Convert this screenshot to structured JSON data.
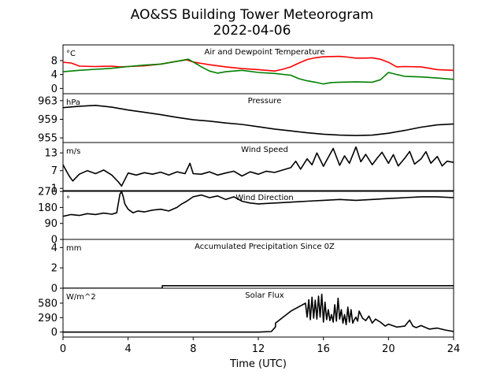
{
  "chart_data": {
    "type": "line",
    "title": "AO&SS Building Tower Meteorogram",
    "subtitle": "2022-04-06",
    "xlabel": "Time (UTC)",
    "xlim": [
      0,
      24
    ],
    "xticks": [
      0,
      4,
      8,
      12,
      16,
      20,
      24
    ],
    "grid": false,
    "panels": [
      {
        "title": "Air and Dewpoint Temperature",
        "unit": "°C",
        "ylim": [
          -1.5,
          12.5
        ],
        "yticks": [
          0,
          4,
          8
        ],
        "series": [
          {
            "color": "#ff0000",
            "x": [
              0,
              0.5,
              0.8,
              1,
              2,
              3,
              3.5,
              4,
              5,
              6,
              7,
              7.6,
              8,
              8.5,
              9,
              10,
              11,
              12,
              13,
              13.5,
              14,
              14.5,
              15,
              15.5,
              16,
              17,
              17.5,
              18,
              18.5,
              19,
              19.5,
              20,
              20.5,
              21,
              22,
              23,
              24
            ],
            "y": [
              7.5,
              7.3,
              6.8,
              6.4,
              6.3,
              6.4,
              6.2,
              6.3,
              6.5,
              7.0,
              7.8,
              8.2,
              7.6,
              7.2,
              6.8,
              6.2,
              5.7,
              5.4,
              5.0,
              5.5,
              6.2,
              7.3,
              8.3,
              8.8,
              9.1,
              9.2,
              9.0,
              8.7,
              8.7,
              8.8,
              8.4,
              7.5,
              6.2,
              6.3,
              6.2,
              5.4,
              5.2
            ]
          },
          {
            "color": "#008000",
            "x": [
              0,
              1,
              2,
              3,
              4,
              5,
              6,
              7,
              7.7,
              8,
              8.5,
              9,
              9.5,
              10,
              11,
              12,
              13,
              14,
              14.5,
              15,
              15.5,
              16,
              16.5,
              17,
              18,
              19,
              19.5,
              20,
              20.5,
              21,
              22,
              23,
              24
            ],
            "y": [
              4.8,
              5.2,
              5.5,
              5.8,
              6.3,
              6.7,
              7.0,
              7.8,
              8.4,
              7.6,
              6.2,
              5.0,
              4.4,
              4.8,
              5.2,
              4.6,
              4.3,
              3.8,
              2.8,
              2.2,
              1.8,
              1.3,
              1.7,
              1.8,
              1.9,
              1.8,
              2.5,
              4.6,
              4.0,
              3.5,
              3.3,
              3.0,
              2.6
            ]
          }
        ]
      },
      {
        "title": "Pressure",
        "unit": "hPa",
        "ylim": [
          954,
          964.5
        ],
        "yticks": [
          955,
          959,
          963
        ],
        "series": [
          {
            "color": "#000000",
            "x": [
              0,
              1,
              2,
              3,
              4,
              5,
              6,
              7,
              8,
              9,
              10,
              11,
              12,
              13,
              14,
              15,
              16,
              17,
              18,
              19,
              20,
              21,
              22,
              23,
              24
            ],
            "y": [
              961.5,
              961.8,
              962.0,
              961.6,
              961.0,
              960.5,
              960.0,
              959.4,
              958.9,
              958.6,
              958.2,
              957.9,
              957.4,
              956.9,
              956.5,
              956.1,
              955.8,
              955.6,
              955.5,
              955.6,
              956.0,
              956.6,
              957.3,
              957.8,
              958.0
            ]
          }
        ]
      },
      {
        "title": "Wind Speed",
        "unit": "m/s",
        "ylim": [
          0,
          16.5
        ],
        "yticks": [
          1,
          7,
          13
        ],
        "series": [
          {
            "color": "#000000",
            "x": [
              0,
              0.2,
              0.4,
              0.6,
              1,
              1.5,
              2,
              2.5,
              3,
              3.4,
              3.6,
              4,
              4.5,
              5,
              5.5,
              6,
              6.5,
              7,
              7.5,
              7.8,
              8,
              8.5,
              9,
              9.5,
              10,
              10.5,
              11,
              11.5,
              12,
              12.5,
              13,
              13.5,
              14,
              14.3,
              14.6,
              15,
              15.3,
              15.6,
              16,
              16.3,
              16.6,
              17,
              17.3,
              17.6,
              18,
              18.3,
              18.6,
              19,
              19.3,
              19.6,
              20,
              20.3,
              20.6,
              21,
              21.3,
              21.6,
              22,
              22.3,
              22.6,
              23,
              23.3,
              23.6,
              24
            ],
            "y": [
              9,
              7,
              5,
              3.5,
              5.8,
              7,
              6,
              7.2,
              5.5,
              3.2,
              1.8,
              6.2,
              5.5,
              6.3,
              5.8,
              6.5,
              5.5,
              6.6,
              6.0,
              9.5,
              6.0,
              5.8,
              6.6,
              5.5,
              6.2,
              6.8,
              5.2,
              6.6,
              5.8,
              6.8,
              6.4,
              7.2,
              8.0,
              10.2,
              7.5,
              11.0,
              9.0,
              13.0,
              8.5,
              11.5,
              14.5,
              8.8,
              12.0,
              9.5,
              15.0,
              10.0,
              12.5,
              9.0,
              11.2,
              13.2,
              9.5,
              12.4,
              8.6,
              11.2,
              13.5,
              9.2,
              11.0,
              13.4,
              9.5,
              11.8,
              8.6,
              10.2,
              9.8
            ]
          }
        ]
      },
      {
        "title": "Wind Direction",
        "unit": "°",
        "ylim": [
          0,
          275
        ],
        "yticks": [
          0,
          90,
          180,
          270
        ],
        "series": [
          {
            "color": "#000000",
            "x": [
              0,
              0.5,
              1,
              1.5,
              2,
              2.5,
              3,
              3.3,
              3.5,
              3.6,
              3.7,
              3.8,
              4,
              4.3,
              4.6,
              5,
              5.5,
              6,
              6.5,
              7,
              7.3,
              7.6,
              8,
              8.5,
              9,
              9.5,
              10,
              10.5,
              11,
              11.5,
              12,
              13,
              14,
              15,
              16,
              17,
              18,
              19,
              20,
              21,
              22,
              23,
              24
            ],
            "y": [
              130,
              140,
              135,
              145,
              140,
              148,
              142,
              150,
              255,
              270,
              240,
              200,
              170,
              150,
              160,
              155,
              165,
              170,
              160,
              180,
              200,
              215,
              240,
              250,
              235,
              245,
              225,
              240,
              215,
              205,
              200,
              205,
              210,
              215,
              220,
              225,
              220,
              225,
              230,
              235,
              240,
              240,
              235
            ]
          }
        ]
      },
      {
        "title": "Accumulated Precipitation Since 0Z",
        "unit": "mm",
        "ylim": [
          0,
          4.8
        ],
        "yticks": [
          0,
          2,
          4
        ],
        "series": [
          {
            "color": "#000000",
            "x": [
              0,
              6.1,
              6.1,
              24
            ],
            "y": [
              0,
              0,
              0.25,
              0.25
            ]
          }
        ]
      },
      {
        "title": "Solar Flux",
        "unit": "W/m^2",
        "ylim": [
          -100,
          880
        ],
        "yticks": [
          0,
          290,
          580
        ],
        "series": [
          {
            "color": "#000000",
            "x": [
              0,
              6,
              12,
              12.8,
              13.05,
              13.06,
              14,
              14.9,
              15.0,
              15.1,
              15.2,
              15.3,
              15.4,
              15.5,
              15.6,
              15.7,
              15.8,
              15.9,
              16.0,
              16.1,
              16.2,
              16.3,
              16.4,
              16.5,
              16.6,
              16.7,
              16.8,
              16.9,
              17.0,
              17.1,
              17.2,
              17.3,
              17.4,
              17.5,
              17.6,
              17.7,
              17.8,
              17.9,
              18.0,
              18.1,
              18.2,
              18.4,
              18.6,
              18.8,
              19.0,
              19.2,
              19.5,
              19.8,
              20.0,
              20.5,
              21.0,
              21.3,
              21.5,
              21.7,
              22.0,
              22.5,
              23.0,
              23.5,
              24.0
            ],
            "y": [
              0,
              0,
              0,
              10,
              100,
              180,
              420,
              580,
              300,
              650,
              250,
              700,
              280,
              640,
              260,
              720,
              300,
              760,
              200,
              600,
              250,
              450,
              230,
              350,
              200,
              550,
              220,
              680,
              260,
              450,
              180,
              350,
              150,
              500,
              200,
              450,
              180,
              250,
              300,
              220,
              420,
              280,
              230,
              320,
              180,
              260,
              200,
              120,
              160,
              100,
              120,
              240,
              120,
              90,
              130,
              60,
              80,
              40,
              10
            ]
          }
        ]
      }
    ]
  }
}
